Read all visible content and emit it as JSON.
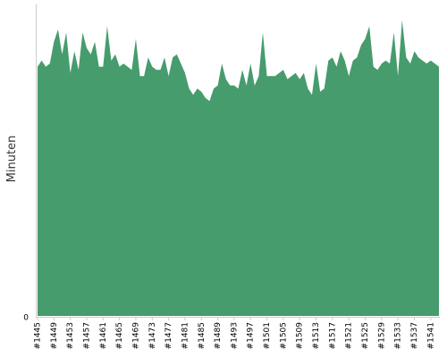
{
  "chart_data": {
    "type": "area",
    "title": "",
    "xlabel": "",
    "ylabel": "Minuten",
    "ylim": [
      0,
      500
    ],
    "y_ticks": [
      "0"
    ],
    "x_tick_labels": [
      "#1445",
      "#1449",
      "#1453",
      "#1457",
      "#1461",
      "#1465",
      "#1469",
      "#1473",
      "#1477",
      "#1481",
      "#1485",
      "#1489",
      "#1493",
      "#1497",
      "#1501",
      "#1505",
      "#1509",
      "#1513",
      "#1517",
      "#1521",
      "#1525",
      "#1529",
      "#1533",
      "#1537",
      "#1541"
    ],
    "x": [
      1445,
      1446,
      1447,
      1448,
      1449,
      1450,
      1451,
      1452,
      1453,
      1454,
      1455,
      1456,
      1457,
      1458,
      1459,
      1460,
      1461,
      1462,
      1463,
      1464,
      1465,
      1466,
      1467,
      1468,
      1469,
      1470,
      1471,
      1472,
      1473,
      1474,
      1475,
      1476,
      1477,
      1478,
      1479,
      1480,
      1481,
      1482,
      1483,
      1484,
      1485,
      1486,
      1487,
      1488,
      1489,
      1490,
      1491,
      1492,
      1493,
      1494,
      1495,
      1496,
      1497,
      1498,
      1499,
      1500,
      1501,
      1502,
      1503,
      1504,
      1505,
      1506,
      1507,
      1508,
      1509,
      1510,
      1511,
      1512,
      1513,
      1514,
      1515,
      1516,
      1517,
      1518,
      1519,
      1520,
      1521,
      1522,
      1523,
      1524,
      1525,
      1526,
      1527,
      1528,
      1529,
      1530,
      1531,
      1532,
      1533,
      1534,
      1535,
      1536,
      1537,
      1538,
      1539,
      1540,
      1541,
      1542,
      1543
    ],
    "values": [
      400,
      410,
      400,
      405,
      440,
      460,
      420,
      455,
      390,
      425,
      395,
      455,
      430,
      420,
      440,
      400,
      400,
      465,
      410,
      420,
      400,
      405,
      400,
      395,
      445,
      385,
      385,
      415,
      400,
      395,
      395,
      415,
      385,
      415,
      420,
      405,
      390,
      365,
      355,
      365,
      360,
      350,
      345,
      365,
      370,
      405,
      380,
      370,
      370,
      365,
      395,
      370,
      405,
      370,
      385,
      455,
      385,
      385,
      385,
      390,
      395,
      380,
      385,
      390,
      380,
      390,
      365,
      355,
      405,
      360,
      365,
      410,
      415,
      400,
      425,
      410,
      385,
      410,
      415,
      435,
      445,
      465,
      400,
      395,
      405,
      410,
      405,
      455,
      385,
      475,
      415,
      405,
      425,
      415,
      410,
      405,
      410,
      405,
      400
    ],
    "color": "#469c6d",
    "grid": false,
    "legend": "none"
  }
}
